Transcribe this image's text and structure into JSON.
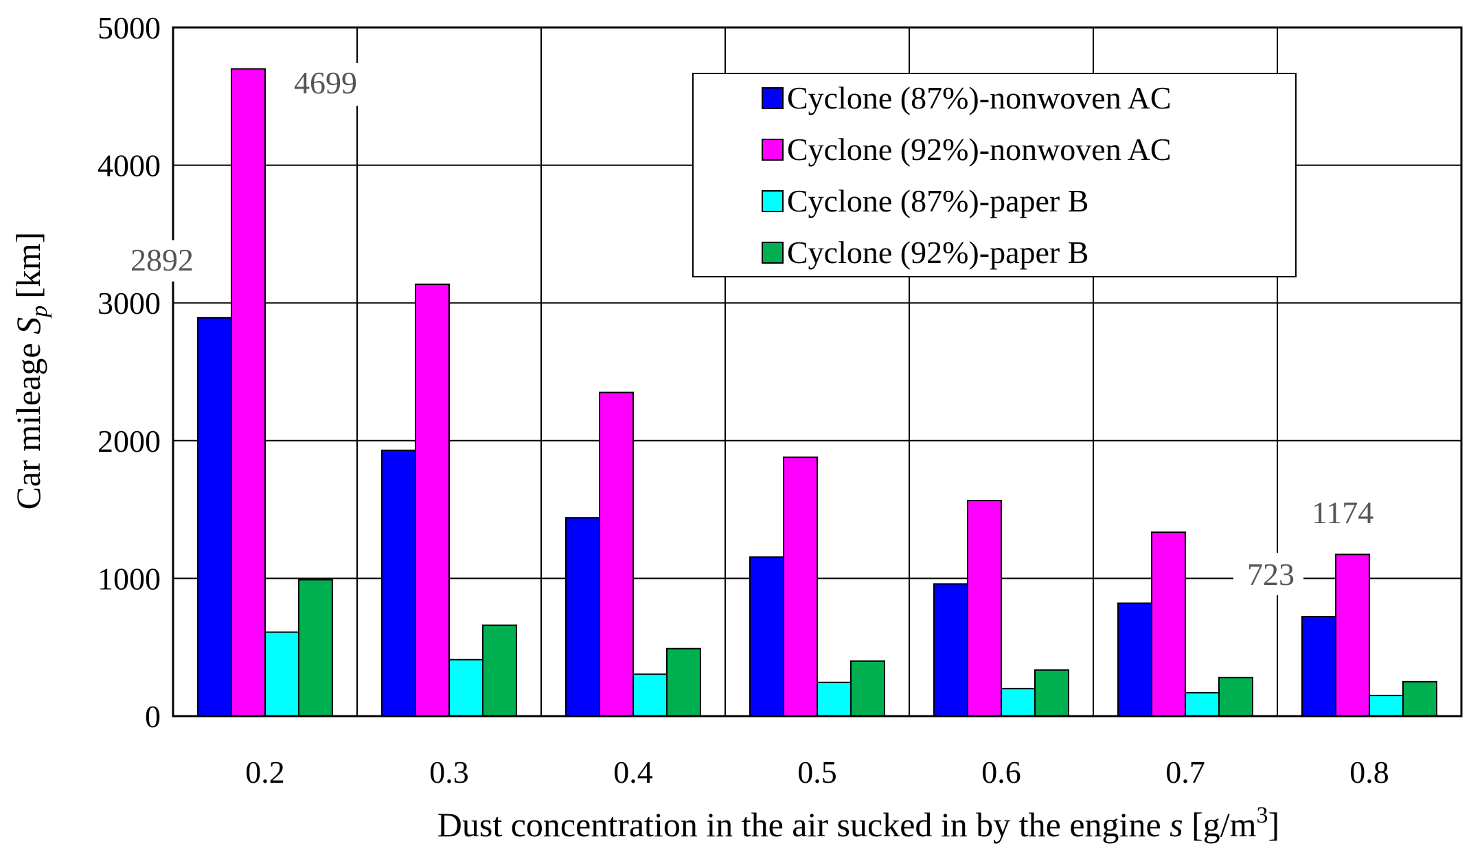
{
  "chart_data": {
    "type": "bar",
    "categories": [
      "0.2",
      "0.3",
      "0.4",
      "0.5",
      "0.6",
      "0.7",
      "0.8"
    ],
    "series": [
      {
        "name": "Cyclone (87%)-nonwoven AC",
        "color": "#0000ff",
        "values": [
          2892,
          1930,
          1440,
          1155,
          960,
          820,
          723
        ]
      },
      {
        "name": "Cyclone (92%)-nonwoven AC",
        "color": "#ff00ff",
        "values": [
          4699,
          3135,
          2350,
          1880,
          1565,
          1335,
          1174
        ]
      },
      {
        "name": "Cyclone (87%)-paper B",
        "color": "#00ffff",
        "values": [
          610,
          410,
          305,
          245,
          200,
          170,
          150
        ]
      },
      {
        "name": "Cyclone (92%)-paper B",
        "color": "#00b050",
        "values": [
          990,
          660,
          490,
          400,
          335,
          280,
          250
        ]
      }
    ],
    "xlabel": "Dust concentration in the air sucked in by the engine",
    "xlabel_symbol": "s",
    "xlabel_unit_open": "[g/m",
    "xlabel_unit_sup": "3",
    "xlabel_unit_close": "]",
    "ylabel": "Car mileage",
    "ylabel_symbol": "S",
    "ylabel_sub": "p",
    "ylabel_unit": "[km]",
    "ylim": [
      0,
      5000
    ],
    "yticks": [
      "0",
      "1000",
      "2000",
      "3000",
      "4000",
      "5000"
    ],
    "grid": true,
    "legend_position": "top-right",
    "annotations": [
      "4699",
      "2892",
      "1174",
      "723"
    ]
  }
}
